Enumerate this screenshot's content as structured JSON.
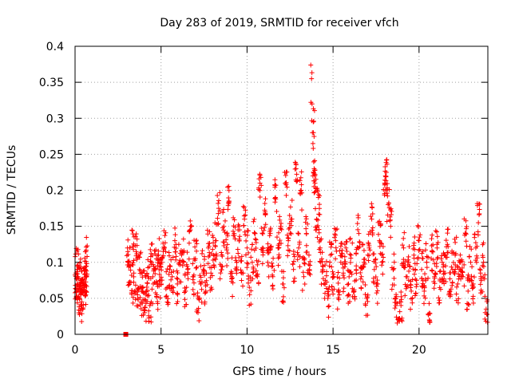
{
  "chart_data": {
    "type": "scatter",
    "title": "Day 283 of 2019, SRMTID for receiver vfch",
    "xlabel": "GPS time / hours",
    "ylabel": "SRMTID / TECUs",
    "xlim": [
      0,
      24
    ],
    "ylim": [
      0,
      0.4
    ],
    "x_ticks": [
      0,
      5,
      10,
      15,
      20
    ],
    "x_tick_labels": [
      "0",
      "5",
      "10",
      "15",
      "20"
    ],
    "y_ticks": [
      0,
      0.05,
      0.1,
      0.15,
      0.2,
      0.25,
      0.3,
      0.35,
      0.4
    ],
    "y_tick_labels": [
      "0",
      "0.05",
      "0.1",
      "0.15",
      "0.2",
      "0.25",
      "0.3",
      "0.35",
      "0.4"
    ],
    "grid": true,
    "marker": "+",
    "marker_color": "#ff0000",
    "gap": {
      "start": 0.75,
      "end": 3.0
    },
    "zero_marker": {
      "x": 2.95,
      "y": 0.0,
      "shape": "square"
    },
    "points": [
      [
        0.05,
        0.085
      ],
      [
        0.08,
        0.062
      ],
      [
        0.12,
        0.095
      ],
      [
        0.15,
        0.07
      ],
      [
        0.2,
        0.078
      ],
      [
        0.25,
        0.05
      ],
      [
        0.3,
        0.068
      ],
      [
        0.35,
        0.04
      ],
      [
        0.4,
        0.088
      ],
      [
        0.45,
        0.058
      ],
      [
        0.5,
        0.073
      ],
      [
        0.55,
        0.065
      ],
      [
        0.6,
        0.09
      ],
      [
        0.65,
        0.08
      ],
      [
        0.7,
        0.108
      ],
      [
        3.05,
        0.12
      ],
      [
        3.15,
        0.095
      ],
      [
        3.25,
        0.072
      ],
      [
        3.35,
        0.122
      ],
      [
        3.45,
        0.06
      ],
      [
        3.55,
        0.115
      ],
      [
        3.65,
        0.05
      ],
      [
        3.75,
        0.09
      ],
      [
        3.85,
        0.045
      ],
      [
        3.95,
        0.065
      ],
      [
        4.05,
        0.03
      ],
      [
        4.15,
        0.06
      ],
      [
        4.25,
        0.08
      ],
      [
        4.35,
        0.04
      ],
      [
        4.45,
        0.1
      ],
      [
        4.55,
        0.07
      ],
      [
        4.65,
        0.09
      ],
      [
        4.75,
        0.055
      ],
      [
        4.85,
        0.11
      ],
      [
        4.95,
        0.075
      ],
      [
        5.05,
        0.1
      ],
      [
        5.2,
        0.12
      ],
      [
        5.35,
        0.065
      ],
      [
        5.5,
        0.09
      ],
      [
        5.65,
        0.08
      ],
      [
        5.8,
        0.13
      ],
      [
        5.95,
        0.07
      ],
      [
        6.1,
        0.1
      ],
      [
        6.25,
        0.115
      ],
      [
        6.4,
        0.06
      ],
      [
        6.55,
        0.09
      ],
      [
        6.7,
        0.145
      ],
      [
        6.85,
        0.08
      ],
      [
        7.0,
        0.105
      ],
      [
        7.15,
        0.03
      ],
      [
        7.3,
        0.07
      ],
      [
        7.45,
        0.09
      ],
      [
        7.6,
        0.06
      ],
      [
        7.75,
        0.12
      ],
      [
        7.9,
        0.085
      ],
      [
        8.05,
        0.11
      ],
      [
        8.2,
        0.13
      ],
      [
        8.35,
        0.175
      ],
      [
        8.5,
        0.095
      ],
      [
        8.65,
        0.15
      ],
      [
        8.8,
        0.12
      ],
      [
        8.95,
        0.185
      ],
      [
        9.1,
        0.08
      ],
      [
        9.25,
        0.14
      ],
      [
        9.4,
        0.1
      ],
      [
        9.55,
        0.13
      ],
      [
        9.7,
        0.085
      ],
      [
        9.85,
        0.16
      ],
      [
        10.0,
        0.12
      ],
      [
        10.15,
        0.055
      ],
      [
        10.3,
        0.1
      ],
      [
        10.45,
        0.14
      ],
      [
        10.6,
        0.08
      ],
      [
        10.75,
        0.21
      ],
      [
        10.9,
        0.12
      ],
      [
        11.05,
        0.17
      ],
      [
        11.2,
        0.1
      ],
      [
        11.35,
        0.14
      ],
      [
        11.5,
        0.08
      ],
      [
        11.65,
        0.19
      ],
      [
        11.8,
        0.12
      ],
      [
        11.95,
        0.15
      ],
      [
        12.1,
        0.07
      ],
      [
        12.25,
        0.21
      ],
      [
        12.4,
        0.13
      ],
      [
        12.55,
        0.16
      ],
      [
        12.7,
        0.09
      ],
      [
        12.85,
        0.23
      ],
      [
        13.0,
        0.12
      ],
      [
        13.15,
        0.2
      ],
      [
        13.3,
        0.08
      ],
      [
        13.45,
        0.14
      ],
      [
        13.6,
        0.11
      ],
      [
        13.75,
        0.355
      ],
      [
        13.78,
        0.32
      ],
      [
        13.8,
        0.28
      ],
      [
        13.83,
        0.265
      ],
      [
        13.85,
        0.295
      ],
      [
        13.9,
        0.23
      ],
      [
        13.95,
        0.21
      ],
      [
        14.05,
        0.16
      ],
      [
        14.15,
        0.19
      ],
      [
        14.25,
        0.12
      ],
      [
        14.4,
        0.09
      ],
      [
        14.55,
        0.075
      ],
      [
        14.7,
        0.05
      ],
      [
        14.85,
        0.11
      ],
      [
        15.0,
        0.08
      ],
      [
        15.15,
        0.13
      ],
      [
        15.3,
        0.06
      ],
      [
        15.45,
        0.1
      ],
      [
        15.6,
        0.085
      ],
      [
        15.75,
        0.12
      ],
      [
        15.9,
        0.07
      ],
      [
        16.05,
        0.11
      ],
      [
        16.2,
        0.06
      ],
      [
        16.35,
        0.095
      ],
      [
        16.5,
        0.14
      ],
      [
        16.65,
        0.08
      ],
      [
        16.8,
        0.1
      ],
      [
        16.95,
        0.05
      ],
      [
        17.1,
        0.12
      ],
      [
        17.25,
        0.16
      ],
      [
        17.4,
        0.09
      ],
      [
        17.55,
        0.07
      ],
      [
        17.7,
        0.13
      ],
      [
        17.85,
        0.1
      ],
      [
        18.0,
        0.21
      ],
      [
        18.1,
        0.225
      ],
      [
        18.2,
        0.18
      ],
      [
        18.35,
        0.15
      ],
      [
        18.5,
        0.09
      ],
      [
        18.65,
        0.05
      ],
      [
        18.8,
        0.02
      ],
      [
        18.95,
        0.04
      ],
      [
        19.1,
        0.12
      ],
      [
        19.25,
        0.08
      ],
      [
        19.4,
        0.1
      ],
      [
        19.55,
        0.06
      ],
      [
        19.7,
        0.11
      ],
      [
        19.85,
        0.075
      ],
      [
        20.0,
        0.13
      ],
      [
        20.15,
        0.09
      ],
      [
        20.3,
        0.06
      ],
      [
        20.45,
        0.1
      ],
      [
        20.6,
        0.02
      ],
      [
        20.75,
        0.115
      ],
      [
        20.9,
        0.08
      ],
      [
        21.05,
        0.12
      ],
      [
        21.2,
        0.065
      ],
      [
        21.35,
        0.1
      ],
      [
        21.5,
        0.085
      ],
      [
        21.65,
        0.125
      ],
      [
        21.8,
        0.06
      ],
      [
        21.95,
        0.09
      ],
      [
        22.1,
        0.11
      ],
      [
        22.25,
        0.07
      ],
      [
        22.4,
        0.1
      ],
      [
        22.55,
        0.08
      ],
      [
        22.7,
        0.14
      ],
      [
        22.85,
        0.06
      ],
      [
        23.0,
        0.1
      ],
      [
        23.15,
        0.07
      ],
      [
        23.3,
        0.12
      ],
      [
        23.45,
        0.155
      ],
      [
        23.6,
        0.08
      ],
      [
        23.75,
        0.1
      ],
      [
        23.9,
        0.035
      ]
    ]
  }
}
